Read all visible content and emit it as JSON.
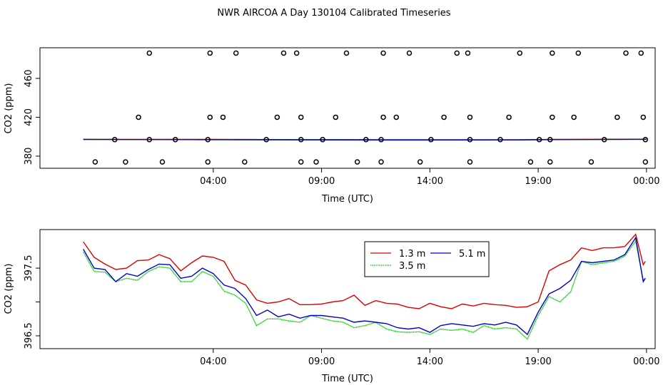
{
  "title": "NWR AIRCOA A  Day 130104  Calibrated Timeseries",
  "colors": {
    "red": "#dd0000",
    "green": "#00cc00",
    "blue": "#0000cc",
    "purple": "#993399"
  },
  "chart_data": [
    {
      "type": "scatter",
      "ylabel": "CO2 (ppm)",
      "xlabel": "Time (UTC)",
      "xlim": [
        -4.0,
        24.4
      ],
      "ylim": [
        367.5,
        491.5
      ],
      "xticks": [
        4,
        9,
        14,
        19,
        24
      ],
      "xtick_labels": [
        "04:00",
        "09:00",
        "14:00",
        "19:00",
        "00:00"
      ],
      "yticks": [
        380,
        420,
        460
      ],
      "ytick_labels": [
        "380",
        "420",
        "460"
      ],
      "points": [
        {
          "x": -1.45,
          "y": 374
        },
        {
          "x": -0.05,
          "y": 374
        },
        {
          "x": 1.65,
          "y": 374
        },
        {
          "x": 3.75,
          "y": 374
        },
        {
          "x": 5.45,
          "y": 374
        },
        {
          "x": 8.05,
          "y": 374
        },
        {
          "x": 8.75,
          "y": 374
        },
        {
          "x": 10.65,
          "y": 374
        },
        {
          "x": 11.75,
          "y": 374
        },
        {
          "x": 13.55,
          "y": 374
        },
        {
          "x": 15.85,
          "y": 374
        },
        {
          "x": 18.65,
          "y": 374
        },
        {
          "x": 19.55,
          "y": 374
        },
        {
          "x": 21.45,
          "y": 374
        },
        {
          "x": 23.95,
          "y": 374
        },
        {
          "x": -0.55,
          "y": 397
        },
        {
          "x": 1.05,
          "y": 397
        },
        {
          "x": 2.25,
          "y": 397
        },
        {
          "x": 3.75,
          "y": 397
        },
        {
          "x": 6.45,
          "y": 397
        },
        {
          "x": 8.05,
          "y": 397
        },
        {
          "x": 9.05,
          "y": 397
        },
        {
          "x": 11.05,
          "y": 397
        },
        {
          "x": 11.75,
          "y": 397
        },
        {
          "x": 14.05,
          "y": 397
        },
        {
          "x": 15.85,
          "y": 397
        },
        {
          "x": 17.25,
          "y": 397
        },
        {
          "x": 19.05,
          "y": 397
        },
        {
          "x": 19.55,
          "y": 397
        },
        {
          "x": 22.05,
          "y": 397
        },
        {
          "x": 23.95,
          "y": 397
        },
        {
          "x": 0.55,
          "y": 420
        },
        {
          "x": 3.85,
          "y": 420
        },
        {
          "x": 4.45,
          "y": 420
        },
        {
          "x": 6.95,
          "y": 420
        },
        {
          "x": 8.05,
          "y": 420
        },
        {
          "x": 9.65,
          "y": 420
        },
        {
          "x": 11.85,
          "y": 420
        },
        {
          "x": 12.45,
          "y": 420
        },
        {
          "x": 14.65,
          "y": 420
        },
        {
          "x": 15.85,
          "y": 420
        },
        {
          "x": 17.65,
          "y": 420
        },
        {
          "x": 19.65,
          "y": 420
        },
        {
          "x": 20.65,
          "y": 420
        },
        {
          "x": 22.65,
          "y": 420
        },
        {
          "x": 23.85,
          "y": 420
        },
        {
          "x": 1.05,
          "y": 486
        },
        {
          "x": 3.85,
          "y": 486
        },
        {
          "x": 5.05,
          "y": 486
        },
        {
          "x": 7.25,
          "y": 486
        },
        {
          "x": 7.85,
          "y": 486
        },
        {
          "x": 10.15,
          "y": 486
        },
        {
          "x": 11.85,
          "y": 486
        },
        {
          "x": 13.05,
          "y": 486
        },
        {
          "x": 15.25,
          "y": 486
        },
        {
          "x": 15.75,
          "y": 486
        },
        {
          "x": 18.15,
          "y": 486
        },
        {
          "x": 19.65,
          "y": 486
        },
        {
          "x": 20.85,
          "y": 486
        },
        {
          "x": 23.05,
          "y": 486
        },
        {
          "x": 23.75,
          "y": 486
        }
      ],
      "series": [
        {
          "name": "1.3 m",
          "color": "#dd0000",
          "values": [
            [
              -2.0,
              397.3
            ],
            [
              0,
              397.3
            ],
            [
              4,
              397.2
            ],
            [
              8,
              397.0
            ],
            [
              12,
              396.9
            ],
            [
              14,
              396.9
            ],
            [
              18,
              396.9
            ],
            [
              20,
              397.3
            ],
            [
              24,
              397.4
            ]
          ]
        },
        {
          "name": "3.5 m",
          "color": "#00cc00",
          "values": [
            [
              -2.0,
              397.2
            ],
            [
              0,
              397.1
            ],
            [
              4,
              396.9
            ],
            [
              8,
              396.6
            ],
            [
              12,
              396.5
            ],
            [
              14,
              396.5
            ],
            [
              18,
              396.6
            ],
            [
              20,
              397.0
            ],
            [
              24,
              397.3
            ]
          ]
        },
        {
          "name": "5.1 m",
          "color": "#0000cc",
          "values": [
            [
              -2.0,
              397.2
            ],
            [
              0,
              397.1
            ],
            [
              4,
              396.9
            ],
            [
              8,
              396.7
            ],
            [
              12,
              396.6
            ],
            [
              14,
              396.6
            ],
            [
              18,
              396.6
            ],
            [
              20,
              397.0
            ],
            [
              24,
              397.3
            ]
          ]
        }
      ]
    },
    {
      "type": "line",
      "ylabel": "CO2 (ppm)",
      "xlabel": "Time (UTC)",
      "xlim": [
        -4.0,
        24.4
      ],
      "ylim": [
        396.31,
        398.07
      ],
      "xticks": [
        4,
        9,
        14,
        19,
        24
      ],
      "xtick_labels": [
        "04:00",
        "09:00",
        "14:00",
        "19:00",
        "00:00"
      ],
      "yticks": [
        396.5,
        397,
        397.5
      ],
      "ytick_labels": [
        "396.5",
        "",
        "397.5"
      ],
      "legend": {
        "position": "top-right",
        "entries": [
          "1.3 m",
          "5.1 m",
          "3.5 m"
        ]
      },
      "series": [
        {
          "name": "1.3 m",
          "color": "#dd0000",
          "values": [
            [
              -2.0,
              397.89
            ],
            [
              -1.5,
              397.66
            ],
            [
              -1.0,
              397.56
            ],
            [
              -0.5,
              397.48
            ],
            [
              0.0,
              397.5
            ],
            [
              0.5,
              397.61
            ],
            [
              1.0,
              397.62
            ],
            [
              1.5,
              397.7
            ],
            [
              2.0,
              397.64
            ],
            [
              2.5,
              397.46
            ],
            [
              3.0,
              397.58
            ],
            [
              3.5,
              397.68
            ],
            [
              4.0,
              397.66
            ],
            [
              4.5,
              397.6
            ],
            [
              5.0,
              397.32
            ],
            [
              5.5,
              397.25
            ],
            [
              6.0,
              397.03
            ],
            [
              6.5,
              396.98
            ],
            [
              7.0,
              397.0
            ],
            [
              7.5,
              397.05
            ],
            [
              8.0,
              396.96
            ],
            [
              8.5,
              396.96
            ],
            [
              9.0,
              396.97
            ],
            [
              9.5,
              397.0
            ],
            [
              10.0,
              397.02
            ],
            [
              10.5,
              397.1
            ],
            [
              11.0,
              396.95
            ],
            [
              11.5,
              397.02
            ],
            [
              12.0,
              396.98
            ],
            [
              12.5,
              396.97
            ],
            [
              13.0,
              396.92
            ],
            [
              13.5,
              396.9
            ],
            [
              14.0,
              396.98
            ],
            [
              14.5,
              396.93
            ],
            [
              15.0,
              396.9
            ],
            [
              15.5,
              396.97
            ],
            [
              16.0,
              396.94
            ],
            [
              16.5,
              396.98
            ],
            [
              17.0,
              396.96
            ],
            [
              17.5,
              396.95
            ],
            [
              18.0,
              396.92
            ],
            [
              18.5,
              396.93
            ],
            [
              19.0,
              397.0
            ],
            [
              19.5,
              397.46
            ],
            [
              20.0,
              397.55
            ],
            [
              20.5,
              397.62
            ],
            [
              21.0,
              397.8
            ],
            [
              21.5,
              397.76
            ],
            [
              22.0,
              397.8
            ],
            [
              22.5,
              397.8
            ],
            [
              23.0,
              397.82
            ],
            [
              23.5,
              398.0
            ],
            [
              23.85,
              397.55
            ],
            [
              23.95,
              397.6
            ]
          ]
        },
        {
          "name": "3.5 m",
          "color": "#00cc00",
          "values": [
            [
              -2.0,
              397.74
            ],
            [
              -1.5,
              397.45
            ],
            [
              -1.0,
              397.44
            ],
            [
              -0.5,
              397.3
            ],
            [
              0.0,
              397.35
            ],
            [
              0.5,
              397.32
            ],
            [
              1.0,
              397.45
            ],
            [
              1.5,
              397.52
            ],
            [
              2.0,
              397.5
            ],
            [
              2.5,
              397.3
            ],
            [
              3.0,
              397.3
            ],
            [
              3.5,
              397.45
            ],
            [
              4.0,
              397.38
            ],
            [
              4.5,
              397.16
            ],
            [
              5.0,
              397.1
            ],
            [
              5.5,
              396.98
            ],
            [
              6.0,
              396.65
            ],
            [
              6.5,
              396.75
            ],
            [
              7.0,
              396.75
            ],
            [
              7.5,
              396.72
            ],
            [
              8.0,
              396.7
            ],
            [
              8.5,
              396.8
            ],
            [
              9.0,
              396.76
            ],
            [
              9.5,
              396.72
            ],
            [
              10.0,
              396.7
            ],
            [
              10.5,
              396.62
            ],
            [
              11.0,
              396.65
            ],
            [
              11.5,
              396.7
            ],
            [
              12.0,
              396.6
            ],
            [
              12.5,
              396.56
            ],
            [
              13.0,
              396.55
            ],
            [
              13.5,
              396.56
            ],
            [
              14.0,
              396.52
            ],
            [
              14.5,
              396.6
            ],
            [
              15.0,
              396.58
            ],
            [
              15.5,
              396.6
            ],
            [
              16.0,
              396.55
            ],
            [
              16.5,
              396.65
            ],
            [
              17.0,
              396.6
            ],
            [
              17.5,
              396.62
            ],
            [
              18.0,
              396.6
            ],
            [
              18.5,
              396.45
            ],
            [
              19.0,
              396.8
            ],
            [
              19.5,
              397.08
            ],
            [
              20.0,
              397.0
            ],
            [
              20.5,
              397.15
            ],
            [
              21.0,
              397.6
            ],
            [
              21.5,
              397.55
            ],
            [
              22.0,
              397.58
            ],
            [
              22.5,
              397.6
            ],
            [
              23.0,
              397.68
            ],
            [
              23.5,
              397.9
            ],
            [
              23.85,
              397.32
            ],
            [
              23.95,
              397.35
            ]
          ]
        },
        {
          "name": "5.1 m",
          "color": "#0000cc",
          "values": [
            [
              -2.0,
              397.78
            ],
            [
              -1.5,
              397.5
            ],
            [
              -1.0,
              397.48
            ],
            [
              -0.5,
              397.3
            ],
            [
              0.0,
              397.42
            ],
            [
              0.5,
              397.38
            ],
            [
              1.0,
              397.48
            ],
            [
              1.5,
              397.56
            ],
            [
              2.0,
              397.55
            ],
            [
              2.5,
              397.35
            ],
            [
              3.0,
              397.38
            ],
            [
              3.5,
              397.5
            ],
            [
              4.0,
              397.42
            ],
            [
              4.5,
              397.25
            ],
            [
              5.0,
              397.2
            ],
            [
              5.5,
              397.05
            ],
            [
              6.0,
              396.8
            ],
            [
              6.5,
              396.88
            ],
            [
              7.0,
              396.78
            ],
            [
              7.5,
              396.82
            ],
            [
              8.0,
              396.76
            ],
            [
              8.5,
              396.8
            ],
            [
              9.0,
              396.8
            ],
            [
              9.5,
              396.78
            ],
            [
              10.0,
              396.76
            ],
            [
              10.5,
              396.7
            ],
            [
              11.0,
              396.72
            ],
            [
              11.5,
              396.7
            ],
            [
              12.0,
              396.68
            ],
            [
              12.5,
              396.62
            ],
            [
              13.0,
              396.6
            ],
            [
              13.5,
              396.62
            ],
            [
              14.0,
              396.55
            ],
            [
              14.5,
              396.65
            ],
            [
              15.0,
              396.68
            ],
            [
              15.5,
              396.66
            ],
            [
              16.0,
              396.64
            ],
            [
              16.5,
              396.68
            ],
            [
              17.0,
              396.66
            ],
            [
              17.5,
              396.7
            ],
            [
              18.0,
              396.66
            ],
            [
              18.5,
              396.52
            ],
            [
              19.0,
              396.85
            ],
            [
              19.5,
              397.12
            ],
            [
              20.0,
              397.2
            ],
            [
              20.5,
              397.32
            ],
            [
              21.0,
              397.6
            ],
            [
              21.5,
              397.58
            ],
            [
              22.0,
              397.6
            ],
            [
              22.5,
              397.62
            ],
            [
              23.0,
              397.7
            ],
            [
              23.5,
              397.95
            ],
            [
              23.85,
              397.3
            ],
            [
              23.95,
              397.35
            ]
          ]
        }
      ]
    }
  ]
}
